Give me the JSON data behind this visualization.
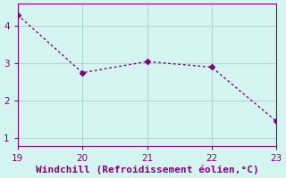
{
  "x": [
    19,
    20,
    21,
    22,
    23
  ],
  "y": [
    4.3,
    2.75,
    3.05,
    2.9,
    1.45
  ],
  "line_color": "#800080",
  "marker": "D",
  "marker_size": 3,
  "background_color": "#d4f5ef",
  "grid_color": "#b0d8d0",
  "xlabel": "Windchill (Refroidissement éolien,°C)",
  "xlabel_color": "#800080",
  "tick_color": "#800080",
  "xlim": [
    19,
    23
  ],
  "ylim": [
    0.8,
    4.6
  ],
  "xticks": [
    19,
    20,
    21,
    22,
    23
  ],
  "yticks": [
    1,
    2,
    3,
    4
  ],
  "xlabel_fontsize": 8,
  "tick_fontsize": 7.5
}
